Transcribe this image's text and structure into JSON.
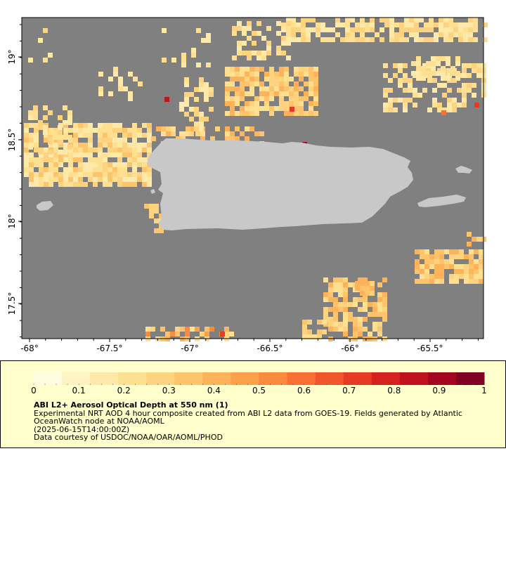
{
  "map": {
    "type": "geographic raster",
    "region": "Puerto Rico",
    "x_ticks": [
      "-68°",
      "-67.5°",
      "-67°",
      "-66.5°",
      "-66°",
      "-65.5°"
    ],
    "y_ticks": [
      "19°",
      "18.5°",
      "18°",
      "17.5°"
    ],
    "colors": {
      "ocean": "#808080",
      "land": "#c8c8c8",
      "legend_background": "#ffffcc"
    }
  },
  "colorbar": {
    "min": 0,
    "max": 1,
    "tick_labels": [
      "0",
      "0.1",
      "0.2",
      "0.3",
      "0.4",
      "0.5",
      "0.6",
      "0.7",
      "0.8",
      "0.9",
      "1"
    ],
    "colors": [
      "#fffbe0",
      "#fff3c4",
      "#ffe9a8",
      "#ffdf90",
      "#fed380",
      "#fec46c",
      "#feb35a",
      "#fda04a",
      "#fc8a3c",
      "#fa7034",
      "#f2542c",
      "#e63a24",
      "#d6221f",
      "#c0121e",
      "#a5061f",
      "#800026"
    ]
  },
  "legend": {
    "title": "ABI L2+ Aerosol Optical Depth at 550 nm (1)",
    "line1": "Experimental NRT AOD 4 hour composite created from ABI L2 data from GOES-19. Fields generated by Atlantic OceanWatch node at NOAA/AOML",
    "line2": "(2025-06-15T14:00:00Z)",
    "line3": "Data courtesy of USDOC/NOAA/OAR/AOML/PHOD"
  }
}
